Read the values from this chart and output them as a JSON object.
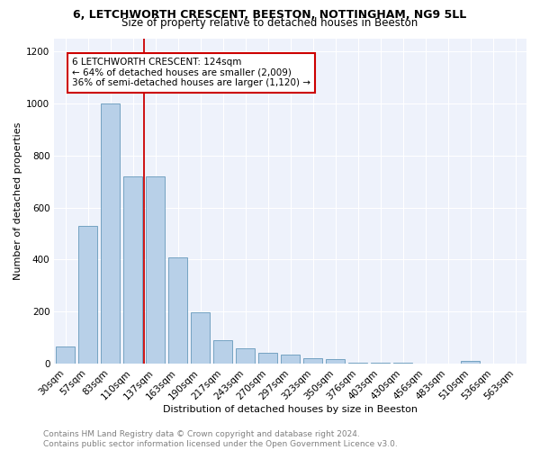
{
  "title": "6, LETCHWORTH CRESCENT, BEESTON, NOTTINGHAM, NG9 5LL",
  "subtitle": "Size of property relative to detached houses in Beeston",
  "xlabel": "Distribution of detached houses by size in Beeston",
  "ylabel": "Number of detached properties",
  "categories": [
    "30sqm",
    "57sqm",
    "83sqm",
    "110sqm",
    "137sqm",
    "163sqm",
    "190sqm",
    "217sqm",
    "243sqm",
    "270sqm",
    "297sqm",
    "323sqm",
    "350sqm",
    "376sqm",
    "403sqm",
    "430sqm",
    "456sqm",
    "483sqm",
    "510sqm",
    "536sqm",
    "563sqm"
  ],
  "values": [
    67,
    530,
    1000,
    720,
    720,
    410,
    197,
    90,
    58,
    43,
    35,
    20,
    18,
    4,
    3,
    3,
    2,
    2,
    12,
    2,
    2
  ],
  "bar_color": "#b8d0e8",
  "bar_edge_color": "#6699bb",
  "marker_label": "6 LETCHWORTH CRESCENT: 124sqm",
  "marker_line_color": "#cc0000",
  "annotation_line1": "← 64% of detached houses are smaller (2,009)",
  "annotation_line2": "36% of semi-detached houses are larger (1,120) →",
  "annotation_box_color": "#cc0000",
  "ylim": [
    0,
    1250
  ],
  "yticks": [
    0,
    200,
    400,
    600,
    800,
    1000,
    1200
  ],
  "footer_line1": "Contains HM Land Registry data © Crown copyright and database right 2024.",
  "footer_line2": "Contains public sector information licensed under the Open Government Licence v3.0.",
  "bg_color": "#eef2fb",
  "grid_color": "#ffffff",
  "title_fontsize": 9,
  "subtitle_fontsize": 8.5,
  "axis_label_fontsize": 8,
  "tick_fontsize": 7.5,
  "annotation_fontsize": 7.5,
  "footer_fontsize": 6.5
}
